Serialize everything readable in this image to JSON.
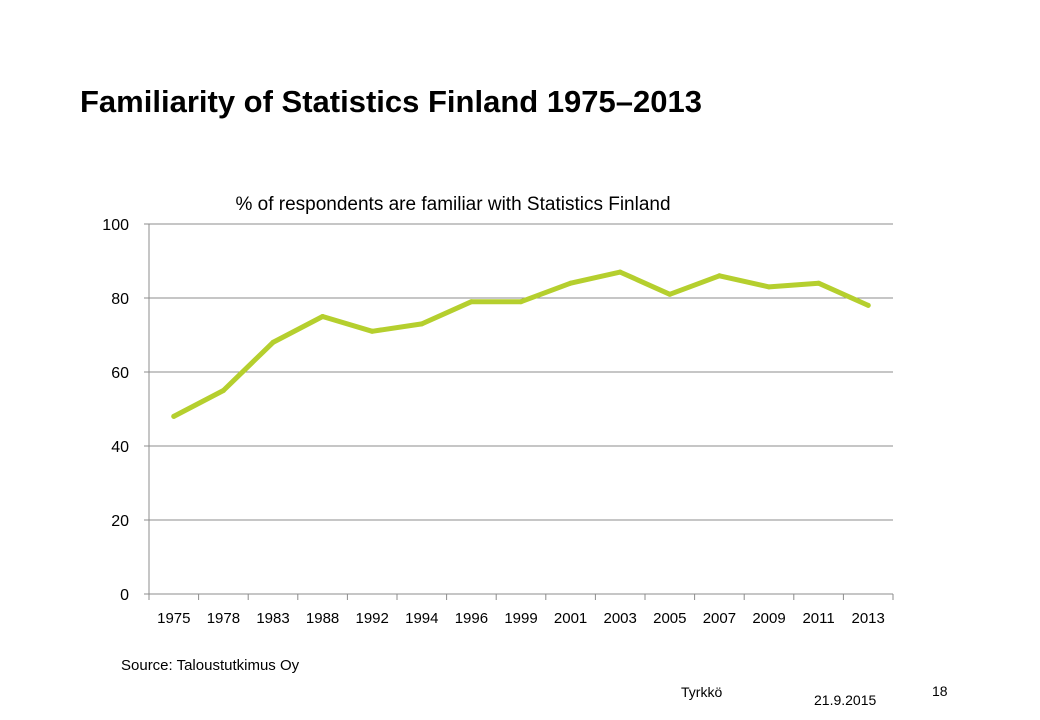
{
  "slide": {
    "title": "Familiarity of Statistics Finland 1975–2013",
    "source": "Source: Taloustutkimus Oy",
    "footer_author": "Tyrkkö",
    "footer_date": "21.9.2015",
    "page_number": "18"
  },
  "chart_data": {
    "type": "line",
    "title": "% of respondents are familiar with Statistics Finland",
    "xlabel": "",
    "ylabel": "",
    "categories": [
      "1975",
      "1978",
      "1983",
      "1988",
      "1992",
      "1994",
      "1996",
      "1999",
      "2001",
      "2003",
      "2005",
      "2007",
      "2009",
      "2011",
      "2013"
    ],
    "series": [
      {
        "values": [
          48,
          55,
          68,
          75,
          71,
          73,
          79,
          79,
          84,
          87,
          81,
          86,
          83,
          84,
          78
        ]
      }
    ],
    "ylim": [
      0,
      100
    ],
    "yticks": [
      0,
      20,
      40,
      60,
      80,
      100
    ],
    "grid": true,
    "legend": "none",
    "line_color": "#b5cf2e",
    "grid_color": "#8c8c8c",
    "axis_color": "#8c8c8c"
  }
}
